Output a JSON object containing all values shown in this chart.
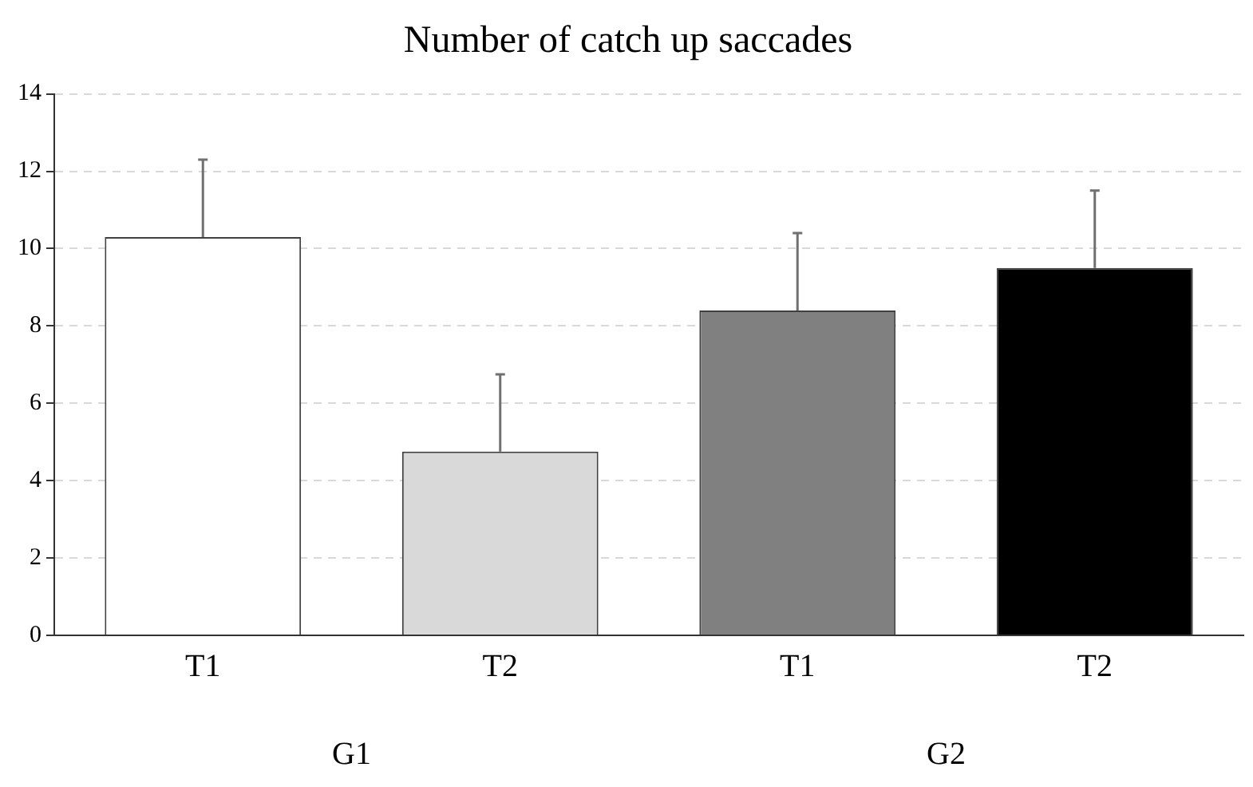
{
  "chart_data": {
    "type": "bar",
    "title": "Number of catch up saccades",
    "categories": [
      "T1",
      "T2",
      "T1",
      "T2"
    ],
    "values": [
      10.3,
      4.75,
      8.4,
      9.5
    ],
    "colors": [
      "#ffffff",
      "#d9d9d9",
      "#808080",
      "#000000"
    ],
    "errors": [
      [
        10.3,
        12.3
      ],
      [
        4.75,
        6.75
      ],
      [
        8.4,
        10.4
      ],
      [
        9.5,
        11.5
      ]
    ],
    "ylim": [
      0,
      14
    ],
    "yticks": [
      0,
      2,
      4,
      6,
      8,
      10,
      12,
      14
    ],
    "grid": "y",
    "legend": false,
    "annotations": [
      "G1",
      "G2"
    ]
  }
}
